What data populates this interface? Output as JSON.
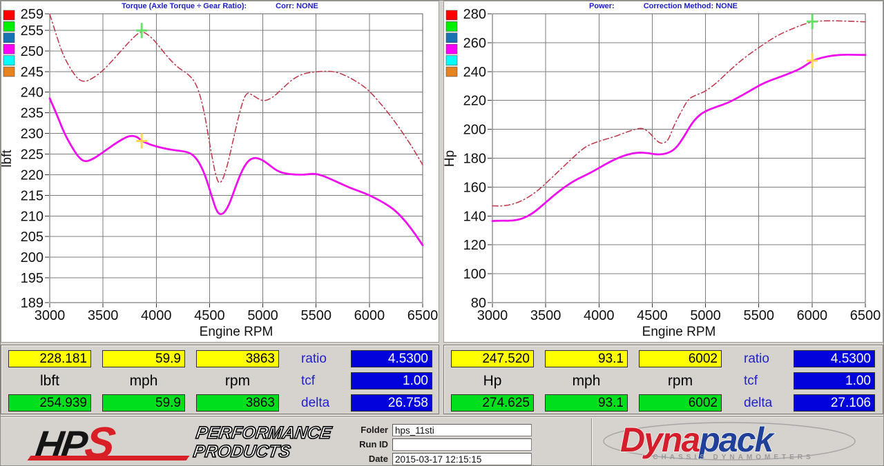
{
  "colors": {
    "page_bg": "#d6d3ce",
    "grid": "#7c7c7c",
    "plot_border": "#5f5f5f",
    "header_text": "#2020c8",
    "run_dash": "#c23c50",
    "run_solid": "#ee10ee",
    "cursor_green": "#63e063",
    "cursor_yellow": "#ffd84d",
    "box_yellow": "#ffff00",
    "box_green": "#00df1e",
    "box_blue": "#0202dd",
    "legend": [
      "#ff0000",
      "#00f000",
      "#1873b5",
      "#ff00ff",
      "#00ffff",
      "#e8821e"
    ]
  },
  "chart_data": [
    {
      "type": "line",
      "header": {
        "left": "Torque (Axle Torque ÷ Gear Ratio):",
        "right": "Corr: NONE"
      },
      "xlabel": "Engine RPM",
      "ylabel": "lbft",
      "xlim": [
        3000,
        6500
      ],
      "ylim": [
        189,
        259
      ],
      "xticks": [
        3000,
        3500,
        4000,
        4500,
        5000,
        5500,
        6000,
        6500
      ],
      "yticks": [
        259,
        255,
        250,
        245,
        240,
        235,
        230,
        225,
        220,
        215,
        210,
        205,
        200,
        195,
        189
      ],
      "grid": true,
      "legend_position": "top-left",
      "series": [
        {
          "name": "reference-run-torque",
          "style": "dashdot",
          "color_key": "run_dash",
          "points": [
            [
              3000,
              258.9
            ],
            [
              3060,
              254
            ],
            [
              3120,
              249.3
            ],
            [
              3200,
              245.4
            ],
            [
              3270,
              243
            ],
            [
              3330,
              242.5
            ],
            [
              3400,
              243.3
            ],
            [
              3500,
              245.2
            ],
            [
              3600,
              248
            ],
            [
              3700,
              250.9
            ],
            [
              3790,
              253.4
            ],
            [
              3863,
              254.9
            ],
            [
              3940,
              253.6
            ],
            [
              4000,
              252
            ],
            [
              4100,
              248.7
            ],
            [
              4200,
              246
            ],
            [
              4300,
              244.4
            ],
            [
              4380,
              242
            ],
            [
              4450,
              235.5
            ],
            [
              4510,
              226
            ],
            [
              4570,
              218.3
            ],
            [
              4610,
              217.9
            ],
            [
              4660,
              221.5
            ],
            [
              4710,
              227
            ],
            [
              4770,
              234
            ],
            [
              4840,
              240.2
            ],
            [
              4910,
              239.2
            ],
            [
              5000,
              237.7
            ],
            [
              5090,
              238.6
            ],
            [
              5180,
              240.8
            ],
            [
              5280,
              243.2
            ],
            [
              5380,
              244.5
            ],
            [
              5480,
              244.9
            ],
            [
              5580,
              245.1
            ],
            [
              5680,
              245
            ],
            [
              5780,
              244
            ],
            [
              5880,
              242.6
            ],
            [
              5980,
              240.8
            ],
            [
              6080,
              238
            ],
            [
              6180,
              234.9
            ],
            [
              6280,
              231.4
            ],
            [
              6390,
              227.2
            ],
            [
              6500,
              222.4
            ]
          ]
        },
        {
          "name": "current-run-torque",
          "style": "solid",
          "color_key": "run_solid",
          "points": [
            [
              3000,
              238.5
            ],
            [
              3060,
              235
            ],
            [
              3130,
              230.4
            ],
            [
              3200,
              227
            ],
            [
              3270,
              224.2
            ],
            [
              3330,
              223.1
            ],
            [
              3400,
              223.7
            ],
            [
              3500,
              225.4
            ],
            [
              3600,
              227.3
            ],
            [
              3700,
              228.9
            ],
            [
              3760,
              229.5
            ],
            [
              3820,
              229.2
            ],
            [
              3863,
              228.2
            ],
            [
              3950,
              227.2
            ],
            [
              4050,
              226.5
            ],
            [
              4150,
              226
            ],
            [
              4250,
              225.7
            ],
            [
              4330,
              225.2
            ],
            [
              4400,
              223.2
            ],
            [
              4460,
              219.8
            ],
            [
              4520,
              214.8
            ],
            [
              4570,
              210.8
            ],
            [
              4620,
              210.2
            ],
            [
              4680,
              212.4
            ],
            [
              4740,
              216.8
            ],
            [
              4800,
              220.8
            ],
            [
              4860,
              223.4
            ],
            [
              4920,
              224.2
            ],
            [
              4990,
              223.7
            ],
            [
              5060,
              222.4
            ],
            [
              5130,
              221
            ],
            [
              5200,
              220.3
            ],
            [
              5300,
              220
            ],
            [
              5400,
              220
            ],
            [
              5480,
              220.3
            ],
            [
              5560,
              219.8
            ],
            [
              5650,
              218.8
            ],
            [
              5750,
              217.6
            ],
            [
              5850,
              216.5
            ],
            [
              5950,
              215.6
            ],
            [
              6050,
              214.4
            ],
            [
              6150,
              213
            ],
            [
              6250,
              211.2
            ],
            [
              6350,
              208.4
            ],
            [
              6430,
              205.6
            ],
            [
              6500,
              202.9
            ]
          ]
        }
      ],
      "cursors": [
        {
          "name": "reference-cursor",
          "x": 3863,
          "y": 254.939,
          "color_key": "cursor_green"
        },
        {
          "name": "current-cursor",
          "x": 3863,
          "y": 228.181,
          "color_key": "cursor_yellow"
        }
      ]
    },
    {
      "type": "line",
      "header": {
        "left": "Power:",
        "right": "Correction Method: NONE"
      },
      "xlabel": "Engine RPM",
      "ylabel": "Hp",
      "xlim": [
        3000,
        6500
      ],
      "ylim": [
        80,
        280
      ],
      "xticks": [
        3000,
        3500,
        4000,
        4500,
        5000,
        5500,
        6000,
        6500
      ],
      "yticks": [
        280,
        260,
        240,
        220,
        200,
        180,
        160,
        140,
        120,
        100,
        80
      ],
      "grid": true,
      "legend_position": "top-left",
      "series": [
        {
          "name": "reference-run-power",
          "style": "dashdot",
          "color_key": "run_dash",
          "points": [
            [
              3000,
              147
            ],
            [
              3080,
              146.8
            ],
            [
              3160,
              147.6
            ],
            [
              3250,
              149.6
            ],
            [
              3350,
              153.5
            ],
            [
              3450,
              159
            ],
            [
              3550,
              166
            ],
            [
              3650,
              173
            ],
            [
              3750,
              180
            ],
            [
              3863,
              187.5
            ],
            [
              3950,
              190.5
            ],
            [
              4050,
              192.9
            ],
            [
              4150,
              195
            ],
            [
              4250,
              197.8
            ],
            [
              4330,
              199.9
            ],
            [
              4400,
              201
            ],
            [
              4460,
              198.8
            ],
            [
              4520,
              193.7
            ],
            [
              4580,
              189.8
            ],
            [
              4640,
              191.5
            ],
            [
              4670,
              196
            ],
            [
              4700,
              202
            ],
            [
              4770,
              212
            ],
            [
              4840,
              221.3
            ],
            [
              4920,
              224
            ],
            [
              5000,
              226.3
            ],
            [
              5100,
              231.9
            ],
            [
              5200,
              238.9
            ],
            [
              5300,
              245.6
            ],
            [
              5400,
              251.5
            ],
            [
              5500,
              256.6
            ],
            [
              5600,
              261.6
            ],
            [
              5700,
              265.9
            ],
            [
              5800,
              269.2
            ],
            [
              5900,
              272.2
            ],
            [
              6002,
              274.6
            ],
            [
              6100,
              275.1
            ],
            [
              6200,
              275.2
            ],
            [
              6300,
              275
            ],
            [
              6400,
              274.7
            ],
            [
              6500,
              274.4
            ]
          ]
        },
        {
          "name": "current-run-power",
          "style": "solid",
          "color_key": "run_solid",
          "points": [
            [
              3000,
              136.5
            ],
            [
              3090,
              136.8
            ],
            [
              3180,
              136.6
            ],
            [
              3280,
              138
            ],
            [
              3380,
              141.8
            ],
            [
              3480,
              148
            ],
            [
              3580,
              154.5
            ],
            [
              3680,
              160.2
            ],
            [
              3780,
              164.9
            ],
            [
              3863,
              167.8
            ],
            [
              3960,
              171.5
            ],
            [
              4060,
              175.8
            ],
            [
              4160,
              179.6
            ],
            [
              4260,
              182.5
            ],
            [
              4360,
              184
            ],
            [
              4460,
              183.6
            ],
            [
              4550,
              182.4
            ],
            [
              4640,
              183.2
            ],
            [
              4720,
              186.5
            ],
            [
              4800,
              195
            ],
            [
              4870,
              204
            ],
            [
              4940,
              209.8
            ],
            [
              5010,
              213
            ],
            [
              5110,
              215.8
            ],
            [
              5210,
              218.3
            ],
            [
              5310,
              222.2
            ],
            [
              5410,
              226.3
            ],
            [
              5510,
              230.7
            ],
            [
              5610,
              234
            ],
            [
              5710,
              236.5
            ],
            [
              5810,
              239.4
            ],
            [
              5900,
              242.3
            ],
            [
              6002,
              247.5
            ],
            [
              6100,
              249.9
            ],
            [
              6200,
              251.2
            ],
            [
              6300,
              251.7
            ],
            [
              6400,
              251.6
            ],
            [
              6500,
              251.5
            ]
          ]
        }
      ],
      "cursors": [
        {
          "name": "reference-cursor",
          "x": 6002,
          "y": 274.625,
          "color_key": "cursor_green"
        },
        {
          "name": "current-cursor",
          "x": 6002,
          "y": 247.52,
          "color_key": "cursor_yellow"
        }
      ]
    }
  ],
  "panels": [
    {
      "top_values": [
        "228.181",
        "59.9",
        "3863"
      ],
      "units": [
        "lbft",
        "mph",
        "rpm"
      ],
      "bottom_values": [
        "254.939",
        "59.9",
        "3863"
      ],
      "ratio_label": "ratio",
      "ratio_value": "4.5300",
      "tcf_label": "tcf",
      "tcf_value": "1.00",
      "delta_label": "delta",
      "delta_value": "26.758"
    },
    {
      "top_values": [
        "247.520",
        "93.1",
        "6002"
      ],
      "units": [
        "Hp",
        "mph",
        "rpm"
      ],
      "bottom_values": [
        "274.625",
        "93.1",
        "6002"
      ],
      "ratio_label": "ratio",
      "ratio_value": "4.5300",
      "tcf_label": "tcf",
      "tcf_value": "1.00",
      "delta_label": "delta",
      "delta_value": "27.106"
    }
  ],
  "footer": {
    "hps_logo": {
      "hp": "HP",
      "s": "S",
      "line1": "PERFORMANCE",
      "line2": "PRODUCTS"
    },
    "form": {
      "folder_label": "Folder",
      "folder_value": "hps_11sti",
      "runid_label": "Run ID",
      "runid_value": "",
      "date_label": "Date",
      "date_value": "2015-03-17 12:15:15"
    },
    "dynapack_logo": {
      "part1": "Dyna",
      "part2": "pack",
      "subtitle": "CHASSIS  DYNAMOMETERS"
    }
  }
}
